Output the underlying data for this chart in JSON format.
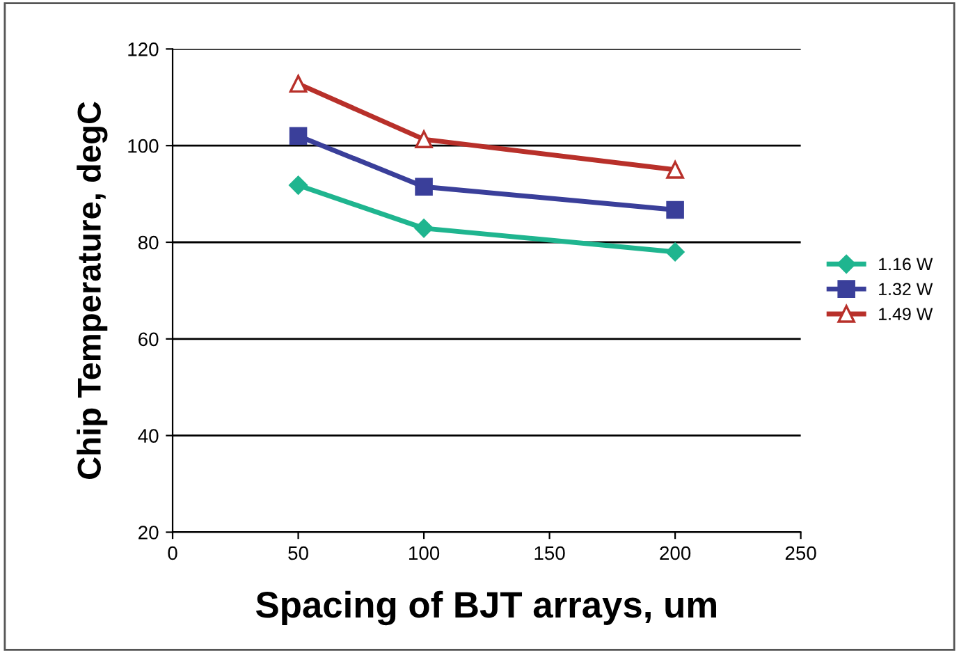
{
  "chart_data": {
    "type": "line",
    "xlabel": "Spacing of BJT arrays, um",
    "ylabel": "Chip Temperature, degC",
    "x": [
      50,
      100,
      200
    ],
    "series": [
      {
        "name": "1.16 W",
        "color": "#1fb58f",
        "marker": "diamond",
        "values": [
          91.8,
          82.9,
          78
        ]
      },
      {
        "name": "1.32 W",
        "color": "#3a3f9a",
        "marker": "square",
        "values": [
          102,
          91.5,
          86.7
        ]
      },
      {
        "name": "1.49 W",
        "color": "#b8302a",
        "marker": "triangle",
        "values": [
          112.8,
          101.3,
          95
        ]
      }
    ],
    "xlim": [
      0,
      250
    ],
    "xticks": [
      0,
      50,
      100,
      150,
      200,
      250
    ],
    "ylim": [
      20,
      120
    ],
    "yticks": [
      20,
      40,
      60,
      80,
      100,
      120
    ],
    "grid": "y",
    "legend": "right"
  }
}
